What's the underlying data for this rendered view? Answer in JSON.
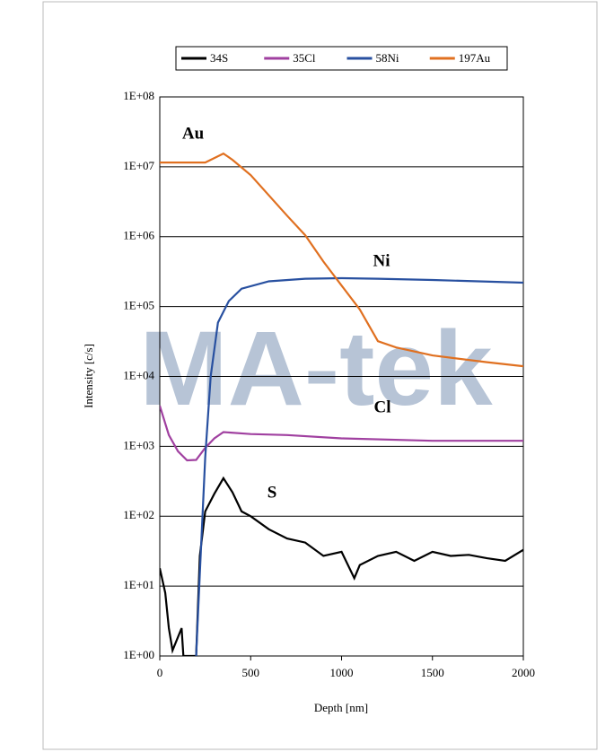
{
  "chart_data": {
    "type": "line",
    "x_label": "Depth [nm]",
    "y_label": "Intensity [c/s]",
    "watermark": "MA-tek",
    "log_y": true,
    "grid": true,
    "legend": "top",
    "xlim": [
      0,
      2000
    ],
    "xticks": [
      0,
      500,
      1000,
      1500,
      2000
    ],
    "ylim": [
      1,
      100000000
    ],
    "yticks": [
      {
        "value": 1,
        "label": "1E+00"
      },
      {
        "value": 10,
        "label": "1E+01"
      },
      {
        "value": 100,
        "label": "1E+02"
      },
      {
        "value": 1000,
        "label": "1E+03"
      },
      {
        "value": 10000,
        "label": "1E+04"
      },
      {
        "value": 100000,
        "label": "1E+05"
      },
      {
        "value": 1000000,
        "label": "1E+06"
      },
      {
        "value": 10000000,
        "label": "1E+07"
      },
      {
        "value": 100000000,
        "label": "1E+08"
      }
    ],
    "series": [
      {
        "name": "34S",
        "color": "#000000",
        "x": [
          0,
          30,
          50,
          70,
          120,
          130,
          200,
          220,
          250,
          300,
          350,
          400,
          450,
          500,
          600,
          700,
          800,
          900,
          1000,
          1070,
          1100,
          1200,
          1300,
          1400,
          1500,
          1600,
          1700,
          1800,
          1900,
          2000
        ],
        "values": [
          18,
          8,
          2.5,
          1.2,
          2.5,
          1,
          1,
          27,
          117,
          210,
          350,
          220,
          117,
          100,
          65,
          48,
          42,
          27,
          31,
          13,
          20,
          27,
          31,
          23,
          31,
          27,
          28,
          25,
          23,
          33
        ]
      },
      {
        "name": "35Cl",
        "color": "#a040a0",
        "x": [
          0,
          50,
          100,
          150,
          200,
          250,
          300,
          350,
          500,
          700,
          1000,
          1500,
          2000
        ],
        "values": [
          3800,
          1450,
          850,
          630,
          640,
          950,
          1300,
          1600,
          1500,
          1450,
          1300,
          1200,
          1200
        ]
      },
      {
        "name": "58Ni",
        "color": "#2850a0",
        "x": [
          200,
          220,
          250,
          280,
          320,
          380,
          450,
          600,
          800,
          1000,
          1200,
          1500,
          2000
        ],
        "values": [
          1,
          15,
          690,
          10000,
          59000,
          120000,
          180000,
          230000,
          250000,
          255000,
          250000,
          240000,
          220000
        ]
      },
      {
        "name": "197Au",
        "color": "#e07020",
        "x": [
          0,
          250,
          350,
          400,
          500,
          700,
          800,
          900,
          1000,
          1100,
          1200,
          1300,
          1500,
          1800,
          2000
        ],
        "values": [
          11500000,
          11500000,
          15500000,
          12600000,
          7600000,
          2000000,
          1050000,
          440000,
          200000,
          91000,
          32000,
          26000,
          20000,
          16000,
          14000
        ]
      }
    ],
    "annotations": [
      {
        "text": "Au",
        "color": "#e07020"
      },
      {
        "text": "Ni",
        "color": "#2850a0"
      },
      {
        "text": "Cl",
        "color": "#a040a0"
      },
      {
        "text": "S",
        "color": "#000000"
      }
    ]
  }
}
